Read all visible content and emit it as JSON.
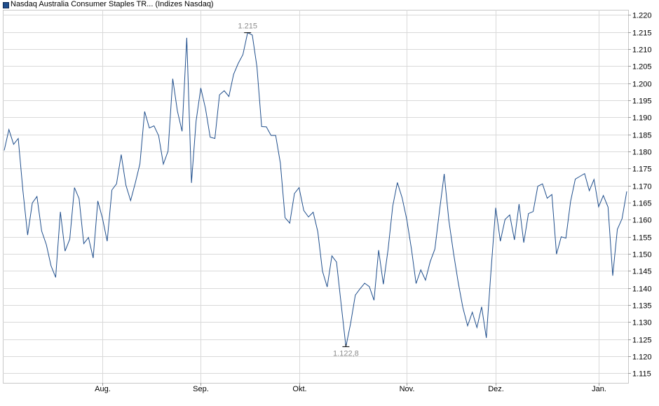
{
  "chart_data": {
    "type": "line",
    "legend_label": "Nasdaq Australia Consumer Staples TR... (Indizes Nasdaq)",
    "xlabel": "",
    "ylabel": "",
    "ylim": [
      1.1122,
      1.2215
    ],
    "y_ticks": [
      1.115,
      1.12,
      1.125,
      1.13,
      1.135,
      1.14,
      1.145,
      1.15,
      1.155,
      1.16,
      1.165,
      1.17,
      1.175,
      1.18,
      1.185,
      1.19,
      1.195,
      1.2,
      1.205,
      1.21,
      1.215,
      1.22
    ],
    "y_tick_labels": [
      "1.115",
      "1.120",
      "1.125",
      "1.130",
      "1.135",
      "1.140",
      "1.145",
      "1.150",
      "1.155",
      "1.160",
      "1.165",
      "1.170",
      "1.175",
      "1.180",
      "1.185",
      "1.190",
      "1.195",
      "1.200",
      "1.205",
      "1.210",
      "1.215",
      "1.220"
    ],
    "x_ticks": [
      {
        "label": "Aug.",
        "index": 21
      },
      {
        "label": "Sep.",
        "index": 42
      },
      {
        "label": "Okt.",
        "index": 63
      },
      {
        "label": "Nov.",
        "index": 86
      },
      {
        "label": "Dez.",
        "index": 105
      },
      {
        "label": "Jan.",
        "index": 127
      }
    ],
    "annotations": {
      "max_label": "1.215",
      "max_index": 52,
      "min_label": "1.122,8",
      "min_index": 73
    },
    "grid": true,
    "legend_position": "top-left",
    "series": [
      {
        "color": "#1f4e8c",
        "values": [
          1.1803,
          1.1864,
          1.1821,
          1.1838,
          1.1685,
          1.1555,
          1.1649,
          1.1668,
          1.1567,
          1.1527,
          1.1465,
          1.1431,
          1.1623,
          1.1508,
          1.1543,
          1.1694,
          1.1662,
          1.153,
          1.1548,
          1.1488,
          1.1655,
          1.1604,
          1.1537,
          1.1687,
          1.1705,
          1.1791,
          1.1701,
          1.1656,
          1.1707,
          1.1764,
          1.1917,
          1.1869,
          1.1875,
          1.1846,
          1.1763,
          1.1801,
          1.2013,
          1.1919,
          1.1859,
          1.2133,
          1.1708,
          1.1889,
          1.1986,
          1.1926,
          1.1842,
          1.1838,
          1.1966,
          1.1978,
          1.1961,
          1.2026,
          1.2058,
          1.2084,
          1.2148,
          1.2141,
          1.2048,
          1.1873,
          1.1872,
          1.1847,
          1.1847,
          1.1766,
          1.1606,
          1.159,
          1.1677,
          1.1694,
          1.1627,
          1.1608,
          1.1622,
          1.1565,
          1.1449,
          1.1403,
          1.1494,
          1.1476,
          1.1351,
          1.1228,
          1.1296,
          1.1379,
          1.1397,
          1.1414,
          1.1404,
          1.1364,
          1.1511,
          1.1411,
          1.1512,
          1.164,
          1.1709,
          1.1665,
          1.1601,
          1.1514,
          1.1413,
          1.1453,
          1.1423,
          1.1477,
          1.1514,
          1.1626,
          1.1734,
          1.1597,
          1.1501,
          1.1416,
          1.1342,
          1.1289,
          1.1329,
          1.1284,
          1.1345,
          1.1254,
          1.1451,
          1.1635,
          1.1537,
          1.1601,
          1.1614,
          1.1541,
          1.1646,
          1.1533,
          1.1618,
          1.1624,
          1.1698,
          1.1705,
          1.1663,
          1.1674,
          1.1499,
          1.155,
          1.1546,
          1.1654,
          1.1719,
          1.1727,
          1.1735,
          1.1685,
          1.1718,
          1.1638,
          1.1671,
          1.1637,
          1.1436,
          1.1572,
          1.1603,
          1.1683
        ]
      }
    ]
  }
}
